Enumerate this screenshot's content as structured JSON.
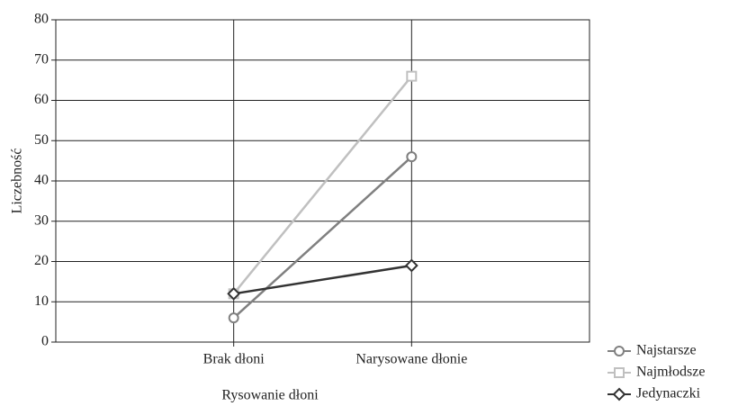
{
  "chart_data": {
    "type": "line",
    "xlabel": "Rysowanie dłoni",
    "ylabel": "Liczebność",
    "categories": [
      "Brak dłoni",
      "Narysowane dłonie"
    ],
    "series": [
      {
        "name": "Najstarsze",
        "color": "#808080",
        "marker": "circle",
        "values": [
          6,
          46
        ]
      },
      {
        "name": "Najmłodsze",
        "color": "#c0c0c0",
        "marker": "square",
        "values": [
          12,
          66
        ]
      },
      {
        "name": "Jedynaczki",
        "color": "#333333",
        "marker": "diamond",
        "values": [
          12,
          19
        ]
      }
    ],
    "ylim": [
      0,
      80
    ],
    "yticks": [
      0,
      10,
      20,
      30,
      40,
      50,
      60,
      70,
      80
    ],
    "grid": true,
    "legend": "lower right"
  }
}
